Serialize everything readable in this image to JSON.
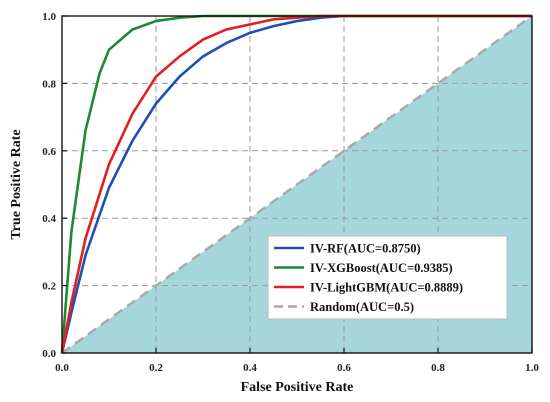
{
  "chart_data": {
    "type": "line",
    "title": "",
    "xlabel": "False Positive Rate",
    "ylabel": "True Positive Rate",
    "xlim": [
      0,
      1
    ],
    "ylim": [
      0,
      1
    ],
    "xticks": [
      "0.0",
      "0.2",
      "0.4",
      "0.6",
      "0.8",
      "1.0"
    ],
    "yticks": [
      "0.0",
      "0.2",
      "0.4",
      "0.6",
      "0.8",
      "1.0"
    ],
    "grid": true,
    "legend_position": "lower-right",
    "shaded_region": "area under the random diagonal",
    "shade_color": "#a4d6dc",
    "series": [
      {
        "name": "IV-RF(AUC=0.8750)",
        "color": "#1f4fb0",
        "x": [
          0,
          0.02,
          0.05,
          0.1,
          0.15,
          0.2,
          0.25,
          0.3,
          0.35,
          0.4,
          0.45,
          0.5,
          0.55,
          0.6,
          0.7,
          0.8,
          0.9,
          1.0
        ],
        "y": [
          0,
          0.12,
          0.29,
          0.49,
          0.63,
          0.74,
          0.82,
          0.88,
          0.92,
          0.95,
          0.97,
          0.985,
          0.995,
          1.0,
          1.0,
          1.0,
          1.0,
          1.0
        ]
      },
      {
        "name": "IV-XGBoost(AUC=0.9385)",
        "color": "#1e8a30",
        "x": [
          0,
          0.02,
          0.05,
          0.08,
          0.1,
          0.15,
          0.2,
          0.25,
          0.3,
          0.35,
          0.4,
          0.5,
          0.6,
          0.7,
          0.8,
          0.9,
          1.0
        ],
        "y": [
          0,
          0.36,
          0.66,
          0.83,
          0.9,
          0.96,
          0.985,
          0.995,
          1.0,
          1.0,
          1.0,
          1.0,
          1.0,
          1.0,
          1.0,
          1.0,
          1.0
        ]
      },
      {
        "name": "IV-LightGBM(AUC=0.8889)",
        "color": "#e02020",
        "x": [
          0,
          0.02,
          0.05,
          0.1,
          0.15,
          0.2,
          0.25,
          0.3,
          0.35,
          0.4,
          0.45,
          0.5,
          0.55,
          0.6,
          0.7,
          0.8,
          0.9,
          1.0
        ],
        "y": [
          0,
          0.15,
          0.34,
          0.56,
          0.71,
          0.82,
          0.88,
          0.93,
          0.96,
          0.975,
          0.99,
          0.995,
          1.0,
          1.0,
          1.0,
          1.0,
          1.0,
          1.0
        ]
      },
      {
        "name": "Random(AUC=0.5)",
        "color": "#a9a9a9",
        "dashed": true,
        "x": [
          0,
          1
        ],
        "y": [
          0,
          1
        ]
      }
    ]
  }
}
